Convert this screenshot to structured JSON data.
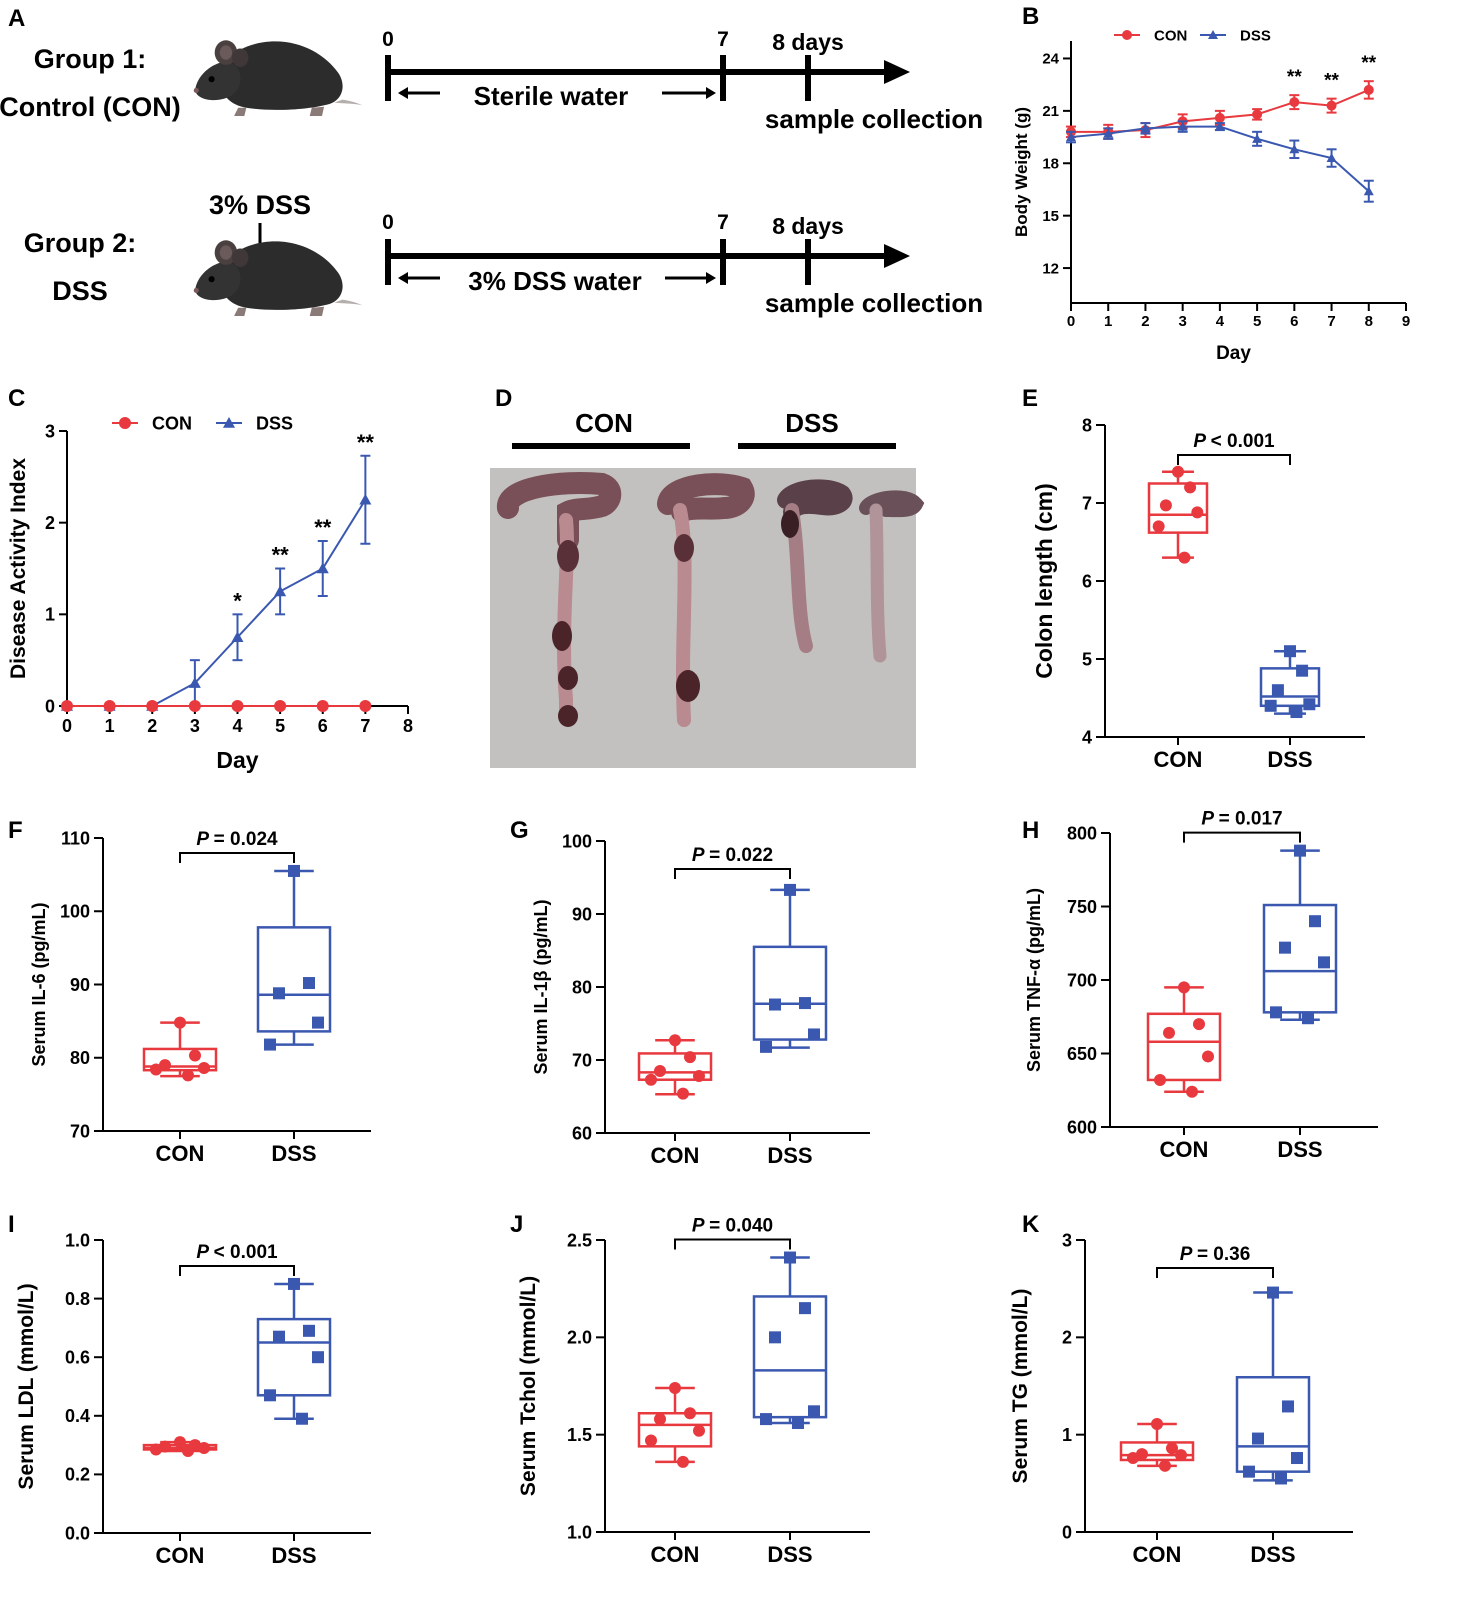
{
  "colors": {
    "con": "#e8393f",
    "dss": "#3a58b0",
    "axis": "#000000",
    "bench": "#bfbdbb"
  },
  "panel_labels": {
    "A": "A",
    "B": "B",
    "C": "C",
    "D": "D",
    "E": "E",
    "F": "F",
    "G": "G",
    "H": "H",
    "I": "I",
    "J": "J",
    "K": "K"
  },
  "experiment": {
    "group1_title": "Group 1:",
    "group1_name": "Control (CON)",
    "group2_title": "Group 2:",
    "group2_name": "DSS",
    "dss_treatment": "3% DSS",
    "mouse_icon": "mouse-icon",
    "tick_start": "0",
    "tick_mid": "7",
    "tick_end": "8 days",
    "water1": "Sterile water",
    "water2": "3% DSS water",
    "collection": "sample collection"
  },
  "photo": {
    "con_label": "CON",
    "dss_label": "DSS"
  },
  "chart_data": [
    {
      "panel": "B",
      "type": "line",
      "ylabel": "Body Weight (g)",
      "xlabel": "Day",
      "x": [
        0,
        1,
        2,
        3,
        4,
        5,
        6,
        7,
        8
      ],
      "xlim": [
        0,
        9
      ],
      "ylim": [
        10,
        25
      ],
      "xticks": [
        "0",
        "1",
        "2",
        "3",
        "4",
        "5",
        "6",
        "7",
        "8",
        "9"
      ],
      "yticks": [
        "12",
        "15",
        "18",
        "21",
        "24"
      ],
      "series": [
        {
          "name": "CON",
          "values": [
            19.8,
            19.8,
            19.9,
            20.4,
            20.6,
            20.8,
            21.5,
            21.3,
            22.2
          ],
          "err": [
            0.3,
            0.4,
            0.4,
            0.4,
            0.4,
            0.3,
            0.4,
            0.4,
            0.5
          ]
        },
        {
          "name": "DSS",
          "values": [
            19.5,
            19.7,
            20.0,
            20.1,
            20.1,
            19.4,
            18.8,
            18.3,
            16.4
          ],
          "err": [
            0.3,
            0.3,
            0.3,
            0.3,
            0.2,
            0.4,
            0.5,
            0.5,
            0.6
          ]
        }
      ],
      "annotations": [
        {
          "x": 6,
          "text": "**"
        },
        {
          "x": 7,
          "text": "**"
        },
        {
          "x": 8,
          "text": "**"
        }
      ]
    },
    {
      "panel": "C",
      "type": "line",
      "ylabel": "Disease Activity Index",
      "xlabel": "Day",
      "x": [
        0,
        1,
        2,
        3,
        4,
        5,
        6,
        7
      ],
      "xlim": [
        0,
        8
      ],
      "ylim": [
        0,
        3
      ],
      "xticks": [
        "0",
        "1",
        "2",
        "3",
        "4",
        "5",
        "6",
        "7",
        "8"
      ],
      "yticks": [
        "0",
        "1",
        "2",
        "3"
      ],
      "series": [
        {
          "name": "CON",
          "values": [
            0,
            0,
            0,
            0,
            0,
            0,
            0,
            0
          ],
          "err": [
            0,
            0,
            0,
            0,
            0,
            0,
            0,
            0
          ]
        },
        {
          "name": "DSS",
          "values": [
            0,
            0,
            0,
            0.25,
            0.75,
            1.25,
            1.5,
            2.25
          ],
          "err": [
            0,
            0,
            0,
            0.25,
            0.25,
            0.25,
            0.3,
            0.48
          ]
        }
      ],
      "annotations": [
        {
          "x": 4,
          "text": "*"
        },
        {
          "x": 5,
          "text": "**"
        },
        {
          "x": 6,
          "text": "**"
        },
        {
          "x": 7,
          "text": "**"
        }
      ]
    },
    {
      "panel": "E",
      "type": "box",
      "ylabel": "Colon length (cm)",
      "ylim": [
        4,
        8
      ],
      "yticks": [
        "4",
        "5",
        "6",
        "7",
        "8"
      ],
      "categories": [
        "CON",
        "DSS"
      ],
      "pvalue": "< 0.001",
      "groups": [
        {
          "name": "CON",
          "min": 6.3,
          "q1": 6.62,
          "median": 6.85,
          "q3": 7.25,
          "max": 7.4,
          "points": [
            7.4,
            7.2,
            6.97,
            6.88,
            6.7,
            6.3
          ]
        },
        {
          "name": "DSS",
          "min": 4.3,
          "q1": 4.4,
          "median": 4.52,
          "q3": 4.88,
          "max": 5.1,
          "points": [
            5.1,
            4.85,
            4.6,
            4.42,
            4.4,
            4.32
          ]
        }
      ]
    },
    {
      "panel": "F",
      "type": "box",
      "ylabel": "Serum IL-6 (pg/mL)",
      "ylim": [
        70,
        110
      ],
      "yticks": [
        "70",
        "80",
        "90",
        "100",
        "110"
      ],
      "categories": [
        "CON",
        "DSS"
      ],
      "pvalue": "= 0.024",
      "groups": [
        {
          "name": "CON",
          "min": 77.5,
          "q1": 78.3,
          "median": 78.8,
          "q3": 81.2,
          "max": 84.8,
          "points": [
            84.8,
            80.3,
            79.0,
            78.6,
            78.4,
            77.6
          ]
        },
        {
          "name": "DSS",
          "min": 81.8,
          "q1": 83.6,
          "median": 88.6,
          "q3": 97.8,
          "max": 105.5,
          "points": [
            105.5,
            90.2,
            88.8,
            84.8,
            81.8
          ]
        }
      ]
    },
    {
      "panel": "G",
      "type": "box",
      "ylabel": "Serum IL-1β (pg/mL)",
      "ylim": [
        60,
        100
      ],
      "yticks": [
        "60",
        "70",
        "80",
        "90",
        "100"
      ],
      "categories": [
        "CON",
        "DSS"
      ],
      "pvalue": "= 0.022",
      "groups": [
        {
          "name": "CON",
          "min": 65.3,
          "q1": 67.3,
          "median": 68.3,
          "q3": 70.9,
          "max": 72.7,
          "points": [
            72.7,
            70.4,
            68.5,
            67.8,
            67.3,
            65.4
          ]
        },
        {
          "name": "DSS",
          "min": 71.7,
          "q1": 72.8,
          "median": 77.7,
          "q3": 85.5,
          "max": 93.3,
          "points": [
            93.3,
            77.8,
            77.6,
            73.5,
            71.8
          ]
        }
      ]
    },
    {
      "panel": "H",
      "type": "box",
      "ylabel": "Serum TNF-α (pg/mL)",
      "ylim": [
        600,
        800
      ],
      "yticks": [
        "600",
        "650",
        "700",
        "750",
        "800"
      ],
      "categories": [
        "CON",
        "DSS"
      ],
      "pvalue": "= 0.017",
      "groups": [
        {
          "name": "CON",
          "min": 624,
          "q1": 632,
          "median": 658,
          "q3": 677,
          "max": 695,
          "points": [
            695,
            670,
            664,
            648,
            632,
            624
          ]
        },
        {
          "name": "DSS",
          "min": 673,
          "q1": 678,
          "median": 706,
          "q3": 751,
          "max": 788,
          "points": [
            788,
            740,
            722,
            712,
            678,
            674
          ]
        }
      ]
    },
    {
      "panel": "I",
      "type": "box",
      "ylabel": "Serum LDL (mmol/L)",
      "ylim": [
        0,
        1
      ],
      "yticks": [
        "0.0",
        "0.2",
        "0.4",
        "0.6",
        "0.8",
        "1.0"
      ],
      "categories": [
        "CON",
        "DSS"
      ],
      "pvalue": "< 0.001",
      "groups": [
        {
          "name": "CON",
          "min": 0.28,
          "q1": 0.285,
          "median": 0.29,
          "q3": 0.3,
          "max": 0.31,
          "points": [
            0.31,
            0.3,
            0.295,
            0.29,
            0.285,
            0.28
          ]
        },
        {
          "name": "DSS",
          "min": 0.39,
          "q1": 0.47,
          "median": 0.65,
          "q3": 0.73,
          "max": 0.85,
          "points": [
            0.85,
            0.69,
            0.67,
            0.6,
            0.47,
            0.39
          ]
        }
      ]
    },
    {
      "panel": "J",
      "type": "box",
      "ylabel": "Serum Tchol (mmol/L)",
      "ylim": [
        1,
        2.5
      ],
      "yticks": [
        "1.0",
        "1.5",
        "2.0",
        "2.5"
      ],
      "categories": [
        "CON",
        "DSS"
      ],
      "pvalue": "= 0.040",
      "groups": [
        {
          "name": "CON",
          "min": 1.36,
          "q1": 1.44,
          "median": 1.55,
          "q3": 1.61,
          "max": 1.74,
          "points": [
            1.74,
            1.61,
            1.58,
            1.52,
            1.47,
            1.36
          ]
        },
        {
          "name": "DSS",
          "min": 1.56,
          "q1": 1.59,
          "median": 1.83,
          "q3": 2.21,
          "max": 2.41,
          "points": [
            2.41,
            2.15,
            2.0,
            1.62,
            1.58,
            1.56
          ]
        }
      ]
    },
    {
      "panel": "K",
      "type": "box",
      "ylabel": "Serum TG (mmol/L)",
      "ylim": [
        0,
        3
      ],
      "yticks": [
        "0",
        "1",
        "2",
        "3"
      ],
      "categories": [
        "CON",
        "DSS"
      ],
      "pvalue": "= 0.36",
      "groups": [
        {
          "name": "CON",
          "min": 0.68,
          "q1": 0.74,
          "median": 0.79,
          "q3": 0.92,
          "max": 1.11,
          "points": [
            1.11,
            0.86,
            0.8,
            0.79,
            0.76,
            0.68
          ]
        },
        {
          "name": "DSS",
          "min": 0.53,
          "q1": 0.62,
          "median": 0.88,
          "q3": 1.59,
          "max": 2.46,
          "points": [
            2.46,
            1.29,
            0.96,
            0.76,
            0.62,
            0.55
          ]
        }
      ]
    }
  ]
}
